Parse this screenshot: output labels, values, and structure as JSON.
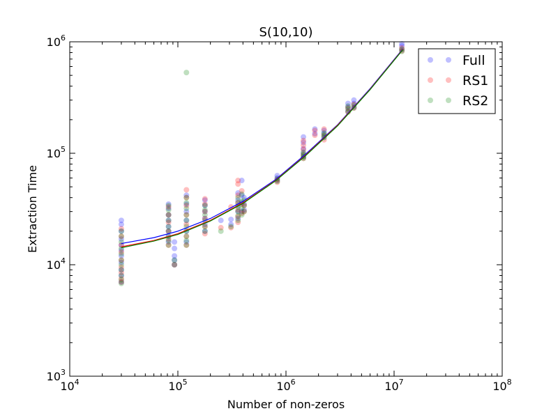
{
  "chart_data": {
    "type": "scatter",
    "title": "S(10,10)",
    "xlabel": "Number of non-zeros",
    "ylabel": "Extraction Time",
    "xscale": "log",
    "yscale": "log",
    "xlim": [
      10000,
      100000000
    ],
    "ylim": [
      1000,
      1000000
    ],
    "x_ticks": [
      {
        "value": 10000,
        "base": "10",
        "exp": "4"
      },
      {
        "value": 100000,
        "base": "10",
        "exp": "5"
      },
      {
        "value": 1000000,
        "base": "10",
        "exp": "6"
      },
      {
        "value": 10000000,
        "base": "10",
        "exp": "7"
      },
      {
        "value": 100000000,
        "base": "10",
        "exp": "8"
      }
    ],
    "y_ticks": [
      {
        "value": 1000,
        "base": "10",
        "exp": "3"
      },
      {
        "value": 10000,
        "base": "10",
        "exp": "4"
      },
      {
        "value": 100000,
        "base": "10",
        "exp": "5"
      },
      {
        "value": 1000000,
        "base": "10",
        "exp": "6"
      }
    ],
    "grid": false,
    "legend_position": "top-right",
    "series": [
      {
        "name": "Full",
        "color": "#0000ff",
        "point_opacity": 0.25,
        "points": [
          [
            30000,
            7000
          ],
          [
            30000,
            8000
          ],
          [
            30000,
            9000
          ],
          [
            30000,
            10500
          ],
          [
            30000,
            12000
          ],
          [
            30000,
            13500
          ],
          [
            30000,
            15000
          ],
          [
            30000,
            17000
          ],
          [
            30000,
            20000
          ],
          [
            30000,
            23000
          ],
          [
            30000,
            25000
          ],
          [
            82000,
            16000
          ],
          [
            82000,
            18000
          ],
          [
            82000,
            20000
          ],
          [
            82000,
            22000
          ],
          [
            82000,
            25000
          ],
          [
            82000,
            28000
          ],
          [
            82000,
            32000
          ],
          [
            82000,
            35000
          ],
          [
            93000,
            10000
          ],
          [
            93000,
            11000
          ],
          [
            93000,
            12000
          ],
          [
            93000,
            14000
          ],
          [
            93000,
            16000
          ],
          [
            120000,
            16000
          ],
          [
            120000,
            20000
          ],
          [
            120000,
            25000
          ],
          [
            120000,
            30000
          ],
          [
            120000,
            35000
          ],
          [
            120000,
            42000
          ],
          [
            178000,
            20000
          ],
          [
            178000,
            23000
          ],
          [
            178000,
            26000
          ],
          [
            178000,
            30000
          ],
          [
            178000,
            34000
          ],
          [
            178000,
            38000
          ],
          [
            250000,
            25000
          ],
          [
            310000,
            23000
          ],
          [
            310000,
            25500
          ],
          [
            360000,
            26000
          ],
          [
            360000,
            30000
          ],
          [
            360000,
            34000
          ],
          [
            360000,
            38000
          ],
          [
            360000,
            44000
          ],
          [
            390000,
            30000
          ],
          [
            390000,
            36000
          ],
          [
            390000,
            42000
          ],
          [
            390000,
            57000
          ],
          [
            410000,
            31000
          ],
          [
            410000,
            35000
          ],
          [
            410000,
            40000
          ],
          [
            830000,
            57000
          ],
          [
            830000,
            60000
          ],
          [
            830000,
            63000
          ],
          [
            1450000,
            93000
          ],
          [
            1450000,
            100000
          ],
          [
            1450000,
            110000
          ],
          [
            1450000,
            125000
          ],
          [
            1450000,
            140000
          ],
          [
            1850000,
            150000
          ],
          [
            1850000,
            165000
          ],
          [
            2250000,
            140000
          ],
          [
            2250000,
            150000
          ],
          [
            2250000,
            160000
          ],
          [
            3750000,
            240000
          ],
          [
            3750000,
            260000
          ],
          [
            3750000,
            280000
          ],
          [
            4250000,
            260000
          ],
          [
            4250000,
            280000
          ],
          [
            4250000,
            300000
          ],
          [
            11800000,
            850000
          ],
          [
            11800000,
            920000
          ],
          [
            11800000,
            960000
          ]
        ],
        "fit_line": [
          [
            30000,
            15500
          ],
          [
            60000,
            17500
          ],
          [
            100000,
            20000
          ],
          [
            200000,
            26000
          ],
          [
            400000,
            37000
          ],
          [
            800000,
            58000
          ],
          [
            1500000,
            97000
          ],
          [
            3000000,
            180000
          ],
          [
            6000000,
            380000
          ],
          [
            12000000,
            860000
          ]
        ]
      },
      {
        "name": "RS1",
        "color": "#ff0000",
        "point_opacity": 0.25,
        "points": [
          [
            30000,
            7000
          ],
          [
            30000,
            7500
          ],
          [
            30000,
            8500
          ],
          [
            30000,
            9500
          ],
          [
            30000,
            11000
          ],
          [
            30000,
            13000
          ],
          [
            30000,
            15000
          ],
          [
            30000,
            18000
          ],
          [
            30000,
            21000
          ],
          [
            82000,
            15000
          ],
          [
            82000,
            17000
          ],
          [
            82000,
            20000
          ],
          [
            82000,
            24000
          ],
          [
            82000,
            28000
          ],
          [
            82000,
            33000
          ],
          [
            93000,
            10000
          ],
          [
            120000,
            15000
          ],
          [
            120000,
            18000
          ],
          [
            120000,
            23000
          ],
          [
            120000,
            28000
          ],
          [
            120000,
            34000
          ],
          [
            120000,
            40000
          ],
          [
            120000,
            47000
          ],
          [
            178000,
            19000
          ],
          [
            178000,
            22000
          ],
          [
            178000,
            26000
          ],
          [
            178000,
            30000
          ],
          [
            178000,
            35000
          ],
          [
            178000,
            39000
          ],
          [
            250000,
            21500
          ],
          [
            310000,
            21500
          ],
          [
            310000,
            33000
          ],
          [
            360000,
            24000
          ],
          [
            360000,
            27000
          ],
          [
            360000,
            31000
          ],
          [
            360000,
            36000
          ],
          [
            360000,
            42000
          ],
          [
            360000,
            53000
          ],
          [
            360000,
            57000
          ],
          [
            390000,
            29000
          ],
          [
            390000,
            35000
          ],
          [
            390000,
            46000
          ],
          [
            410000,
            30000
          ],
          [
            410000,
            34000
          ],
          [
            830000,
            55000
          ],
          [
            830000,
            58000
          ],
          [
            1450000,
            90000
          ],
          [
            1450000,
            97000
          ],
          [
            1450000,
            108000
          ],
          [
            1450000,
            118000
          ],
          [
            1450000,
            130000
          ],
          [
            1850000,
            145000
          ],
          [
            1850000,
            160000
          ],
          [
            2250000,
            132000
          ],
          [
            2250000,
            145000
          ],
          [
            2250000,
            165000
          ],
          [
            3750000,
            235000
          ],
          [
            3750000,
            255000
          ],
          [
            4250000,
            255000
          ],
          [
            4250000,
            275000
          ],
          [
            11800000,
            830000
          ],
          [
            11800000,
            880000
          ]
        ],
        "fit_line": [
          [
            30000,
            14500
          ],
          [
            60000,
            16500
          ],
          [
            100000,
            19000
          ],
          [
            200000,
            25000
          ],
          [
            400000,
            36000
          ],
          [
            800000,
            57000
          ],
          [
            1500000,
            95000
          ],
          [
            3000000,
            178000
          ],
          [
            6000000,
            375000
          ],
          [
            12000000,
            850000
          ]
        ]
      },
      {
        "name": "RS2",
        "color": "#008000",
        "point_opacity": 0.25,
        "points": [
          [
            30000,
            6800
          ],
          [
            30000,
            7300
          ],
          [
            30000,
            8000
          ],
          [
            30000,
            9000
          ],
          [
            30000,
            10000
          ],
          [
            30000,
            11000
          ],
          [
            30000,
            12500
          ],
          [
            30000,
            14000
          ],
          [
            30000,
            16000
          ],
          [
            30000,
            18000
          ],
          [
            30000,
            20000
          ],
          [
            82000,
            15000
          ],
          [
            82000,
            16500
          ],
          [
            82000,
            18000
          ],
          [
            82000,
            20000
          ],
          [
            82000,
            22000
          ],
          [
            82000,
            25000
          ],
          [
            82000,
            28000
          ],
          [
            82000,
            31000
          ],
          [
            82000,
            34000
          ],
          [
            93000,
            10000
          ],
          [
            93000,
            11000
          ],
          [
            120000,
            15000
          ],
          [
            120000,
            16500
          ],
          [
            120000,
            18000
          ],
          [
            120000,
            20000
          ],
          [
            120000,
            22000
          ],
          [
            120000,
            25000
          ],
          [
            120000,
            28000
          ],
          [
            120000,
            32000
          ],
          [
            120000,
            36000
          ],
          [
            120000,
            40000
          ],
          [
            120000,
            530000
          ],
          [
            178000,
            20000
          ],
          [
            178000,
            22000
          ],
          [
            178000,
            25000
          ],
          [
            178000,
            28000
          ],
          [
            178000,
            31000
          ],
          [
            178000,
            34000
          ],
          [
            250000,
            20000
          ],
          [
            310000,
            22000
          ],
          [
            360000,
            25000
          ],
          [
            360000,
            27500
          ],
          [
            360000,
            30000
          ],
          [
            360000,
            33000
          ],
          [
            360000,
            36000
          ],
          [
            360000,
            40000
          ],
          [
            390000,
            28000
          ],
          [
            390000,
            32000
          ],
          [
            390000,
            37000
          ],
          [
            390000,
            43000
          ],
          [
            410000,
            30000
          ],
          [
            410000,
            34000
          ],
          [
            410000,
            38000
          ],
          [
            830000,
            56000
          ],
          [
            830000,
            59000
          ],
          [
            1450000,
            90000
          ],
          [
            1450000,
            93000
          ],
          [
            1450000,
            97000
          ],
          [
            1450000,
            102000
          ],
          [
            2250000,
            138000
          ],
          [
            2250000,
            145000
          ],
          [
            2250000,
            152000
          ],
          [
            3750000,
            235000
          ],
          [
            3750000,
            250000
          ],
          [
            3750000,
            265000
          ],
          [
            4250000,
            255000
          ],
          [
            4250000,
            270000
          ],
          [
            11800000,
            820000
          ],
          [
            11800000,
            860000
          ]
        ],
        "fit_line": [
          [
            30000,
            14200
          ],
          [
            60000,
            16300
          ],
          [
            100000,
            18700
          ],
          [
            200000,
            24700
          ],
          [
            400000,
            35500
          ],
          [
            800000,
            56500
          ],
          [
            1500000,
            94000
          ],
          [
            3000000,
            176000
          ],
          [
            6000000,
            372000
          ],
          [
            12000000,
            845000
          ]
        ]
      }
    ]
  }
}
